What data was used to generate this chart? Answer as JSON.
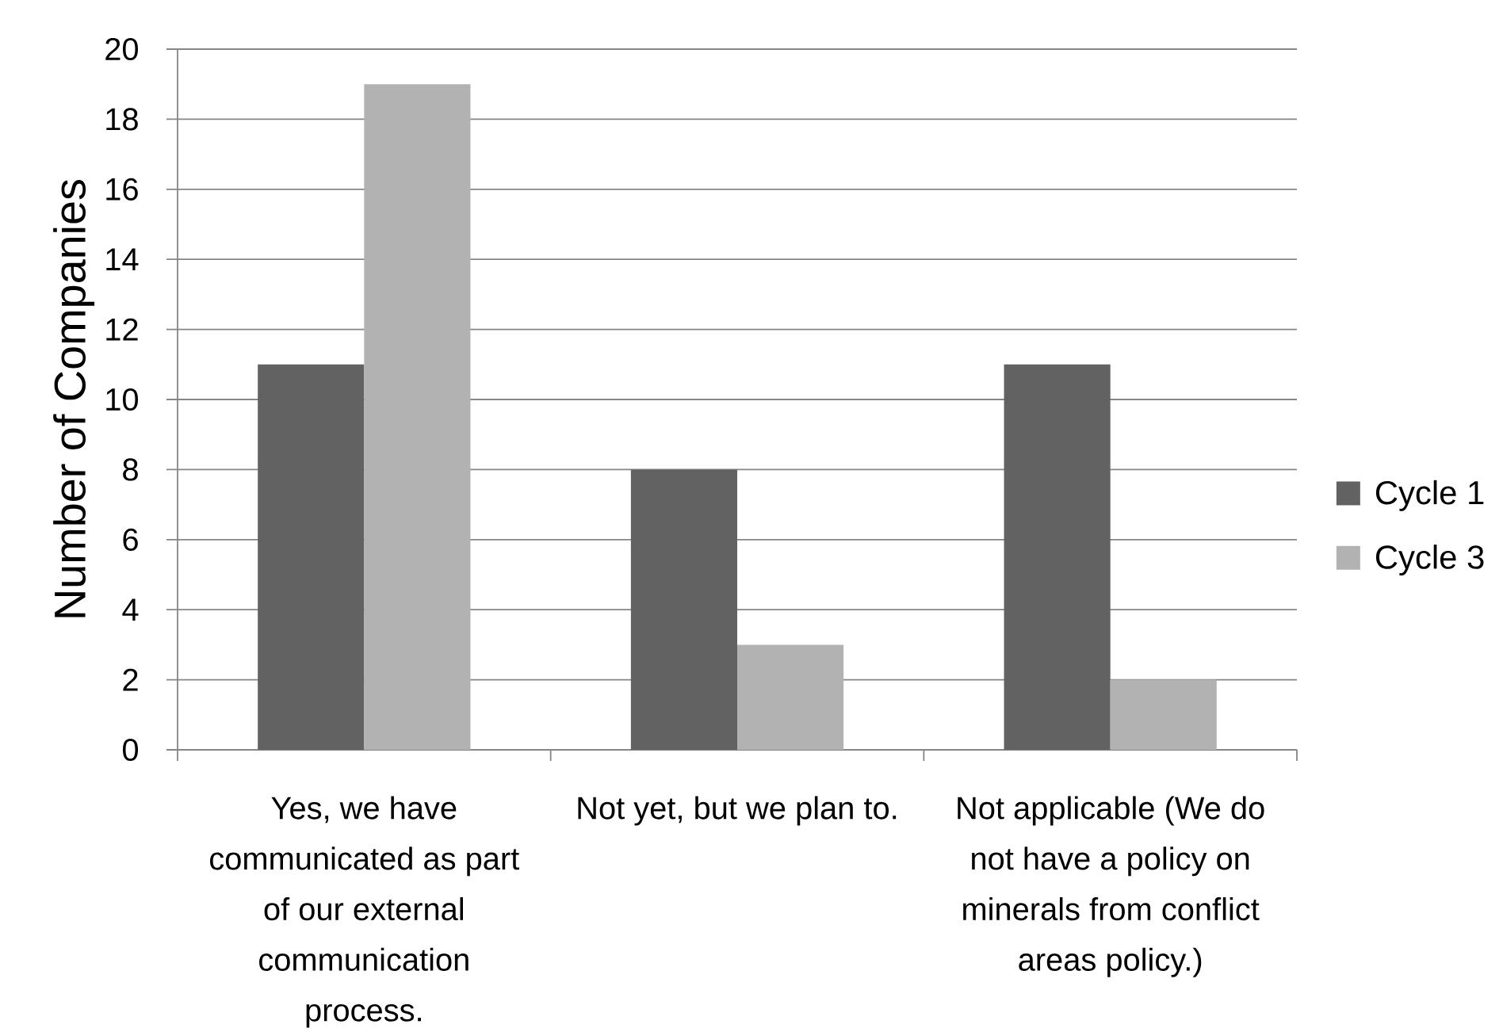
{
  "chart_data": {
    "type": "bar",
    "ylabel": "Number of Companies",
    "categories": [
      "Yes, we have communicated as part of our external communication process.",
      "Not yet, but we plan to.",
      "Not applicable (We do not have a policy on minerals from conflict areas policy.)"
    ],
    "series": [
      {
        "name": "Cycle 1",
        "color": "#626262",
        "values": [
          11,
          8,
          11
        ]
      },
      {
        "name": "Cycle 3",
        "color": "#b2b2b2",
        "values": [
          19,
          3,
          2
        ]
      }
    ],
    "ylim": [
      0,
      20
    ],
    "yticks": [
      0,
      2,
      4,
      6,
      8,
      10,
      12,
      14,
      16,
      18,
      20
    ],
    "grid": "y",
    "legend": "right"
  }
}
